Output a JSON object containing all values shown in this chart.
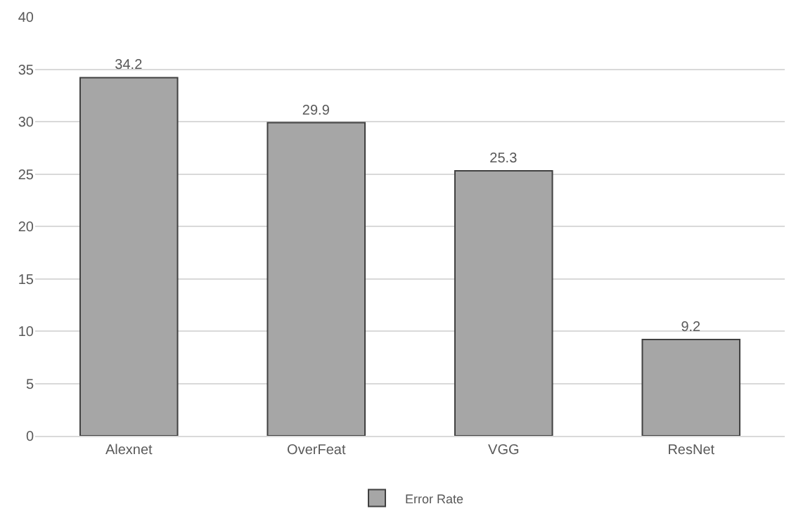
{
  "chart_data": {
    "type": "bar",
    "categories": [
      "Alexnet",
      "OverFeat",
      "VGG",
      "ResNet"
    ],
    "series": [
      {
        "name": "Error Rate",
        "color": "#a6a6a6",
        "values": [
          34.2,
          29.9,
          25.3,
          9.2
        ]
      }
    ],
    "ylim": [
      0,
      40
    ],
    "yticks": [
      0,
      5,
      10,
      15,
      20,
      25,
      30,
      35,
      40
    ],
    "grid": "y",
    "legend": "bottom",
    "data_labels": true
  }
}
